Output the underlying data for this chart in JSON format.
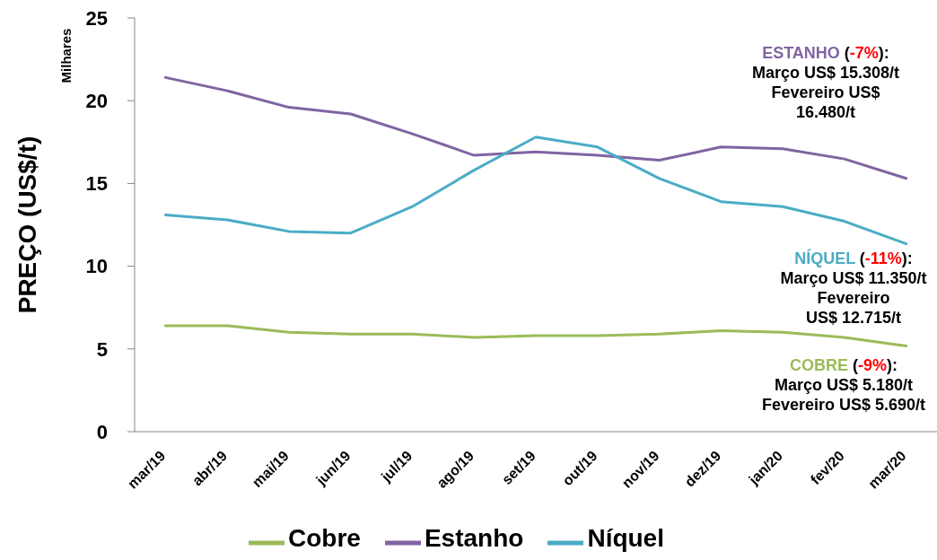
{
  "chart_data": {
    "type": "line",
    "ylabel": "PREÇO (US$/t)",
    "annotations": [
      "Milhares",
      "COBRE (-9%):\nMarço US$ 5.180/t\nFevereiro US$ 5.690/t",
      "ESTANHO (-7%):\nMarço US$ 15.308/t\nFevereiro US$\n16.480/t",
      "NÍQUEL (-11%):\nMarço US$ 11.350/t\nFevereiro\nUS$ 12.715/t"
    ],
    "categories": [
      "mar/19",
      "abr/19",
      "mai/19",
      "jun/19",
      "jul/19",
      "ago/19",
      "set/19",
      "out/19",
      "nov/19",
      "dez/19",
      "jan/20",
      "fev/20",
      "mar/20"
    ],
    "series": [
      {
        "name": "Cobre",
        "color": "#9bbb59",
        "values": [
          6.4,
          6.4,
          6.0,
          5.9,
          5.9,
          5.7,
          5.8,
          5.8,
          5.9,
          6.1,
          6.0,
          5.69,
          5.18
        ]
      },
      {
        "name": "Estanho",
        "color": "#8064a2",
        "values": [
          21.4,
          20.6,
          19.6,
          19.2,
          18.0,
          16.7,
          16.9,
          16.7,
          16.4,
          17.2,
          17.1,
          16.48,
          15.308
        ]
      },
      {
        "name": "Níquel",
        "color": "#4bacc6",
        "values": [
          13.1,
          12.8,
          12.1,
          12.0,
          13.6,
          15.8,
          17.8,
          17.2,
          15.3,
          13.9,
          13.6,
          12.715,
          11.35
        ]
      }
    ],
    "ylim": [
      0,
      25
    ],
    "yticks": [
      0,
      5,
      10,
      15,
      20,
      25
    ],
    "legend": "bottom",
    "marker": "none",
    "line_style": "solid"
  }
}
